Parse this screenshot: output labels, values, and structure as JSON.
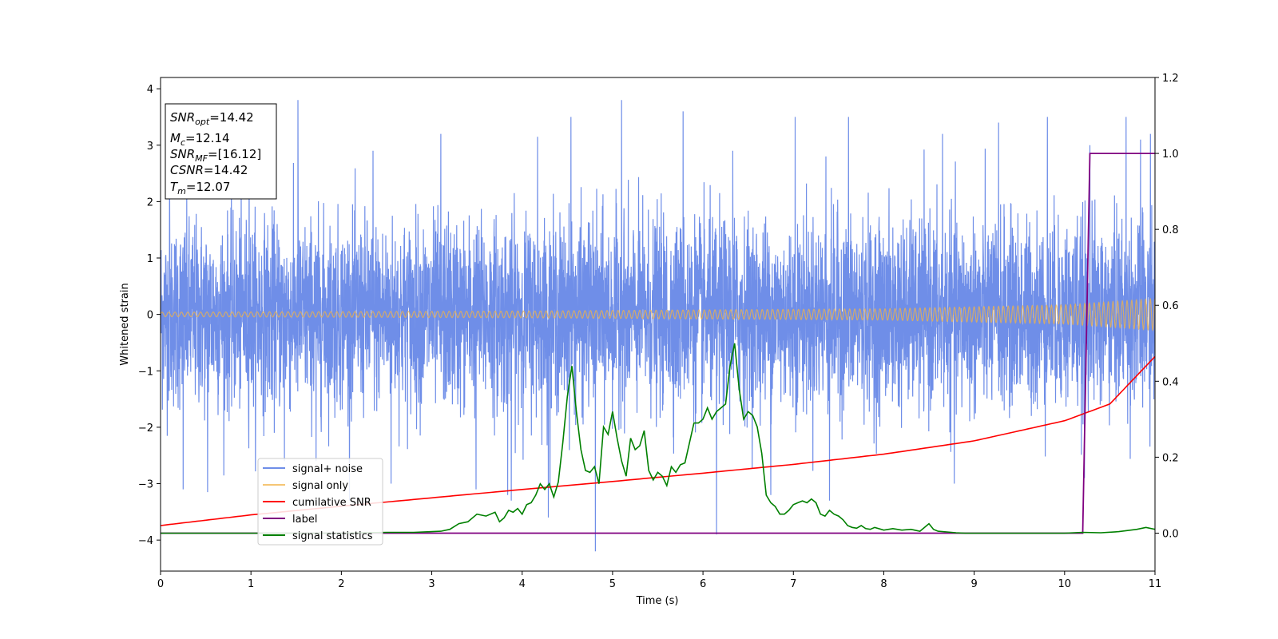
{
  "chart_data": {
    "type": "line",
    "title": "",
    "xlabel": "Time (s)",
    "ylabel_left": "Whitened strain",
    "ylabel_right": "",
    "xlim": [
      0,
      11
    ],
    "ylim_left": [
      -4.55,
      4.2
    ],
    "ylim_right": [
      -0.1,
      1.2
    ],
    "xticks": [
      "0",
      "1",
      "2",
      "3",
      "4",
      "5",
      "6",
      "7",
      "8",
      "9",
      "10",
      "11"
    ],
    "yticks_left": [
      "4",
      "3",
      "2",
      "1",
      "0",
      "−1",
      "−2",
      "−3",
      "−4"
    ],
    "yticks_right": [
      "1.2",
      "1.0",
      "0.8",
      "0.6",
      "0.4",
      "0.2",
      "0.0"
    ],
    "grid": false,
    "legend_position": "lower-left",
    "annotation": [
      {
        "base": "SNR",
        "sub": "opt",
        "rest": "=14.42"
      },
      {
        "base": "M",
        "sub": "c",
        "rest": "=12.14"
      },
      {
        "base": "SNR",
        "sub": "MF",
        "rest": "=[16.12]"
      },
      {
        "base": "CSNR",
        "sub": "",
        "rest": "=14.42"
      },
      {
        "base": "T",
        "sub": "m",
        "rest": "=12.07"
      }
    ],
    "series": [
      {
        "name": "signal+ noise",
        "color": "#6f8ee8",
        "axis": "left",
        "description_values": {
          "noise_sigma": 1.0,
          "spike_times": [
            0.1,
            0.25,
            0.52,
            0.98,
            1.37,
            1.52,
            1.72,
            2.35,
            2.55,
            3.1,
            3.49,
            3.84,
            3.88,
            4.17,
            4.29,
            4.54,
            4.81,
            5.1,
            5.78,
            6.15,
            6.33,
            6.75,
            7.02,
            7.36,
            7.4,
            7.61,
            8.65,
            8.78,
            9.27,
            9.81,
            10.22,
            10.28,
            10.68,
            10.84,
            10.95
          ],
          "spike_values": [
            2.8,
            -3.1,
            -3.15,
            3.1,
            -2.6,
            3.8,
            -2.6,
            2.9,
            -3.0,
            3.2,
            -3.1,
            -3.2,
            -3.3,
            3.15,
            -3.6,
            3.5,
            -4.2,
            3.8,
            3.6,
            -3.9,
            2.9,
            -3.2,
            3.5,
            2.8,
            -3.3,
            3.5,
            3.2,
            -3.0,
            3.4,
            3.5,
            -2.9,
            3.0,
            3.5,
            3.1,
            3.2
          ]
        }
      },
      {
        "name": "signal only",
        "color": "#f2b347",
        "axis": "left",
        "envelope": {
          "x": [
            0,
            4,
            8,
            10,
            11
          ],
          "amplitude": [
            0.04,
            0.06,
            0.1,
            0.17,
            0.28
          ]
        }
      },
      {
        "name": "cumilative SNR",
        "color": "#ff0000",
        "axis": "right",
        "x": [
          0,
          1,
          2,
          3,
          4,
          5,
          6,
          7,
          8,
          9,
          10,
          10.5,
          11
        ],
        "y": [
          0.02,
          0.048,
          0.071,
          0.093,
          0.115,
          0.136,
          0.158,
          0.181,
          0.208,
          0.243,
          0.296,
          0.34,
          0.465
        ]
      },
      {
        "name": "label",
        "color": "#800080",
        "axis": "right",
        "x": [
          0,
          10.2,
          10.28,
          11
        ],
        "y": [
          0.0,
          0.0,
          1.0,
          1.0
        ]
      },
      {
        "name": "signal statistics",
        "color": "#008000",
        "axis": "right",
        "x": [
          0,
          1,
          2,
          2.5,
          2.8,
          3.0,
          3.1,
          3.2,
          3.3,
          3.4,
          3.5,
          3.6,
          3.7,
          3.75,
          3.8,
          3.85,
          3.9,
          3.95,
          4.0,
          4.05,
          4.1,
          4.15,
          4.2,
          4.25,
          4.3,
          4.35,
          4.4,
          4.45,
          4.5,
          4.55,
          4.6,
          4.65,
          4.7,
          4.75,
          4.8,
          4.85,
          4.9,
          4.95,
          5.0,
          5.05,
          5.1,
          5.15,
          5.2,
          5.25,
          5.3,
          5.35,
          5.4,
          5.45,
          5.5,
          5.55,
          5.6,
          5.65,
          5.7,
          5.75,
          5.8,
          5.9,
          5.95,
          6.0,
          6.05,
          6.1,
          6.15,
          6.2,
          6.25,
          6.3,
          6.35,
          6.4,
          6.45,
          6.5,
          6.55,
          6.6,
          6.65,
          6.7,
          6.75,
          6.8,
          6.85,
          6.9,
          6.95,
          7.0,
          7.05,
          7.1,
          7.15,
          7.2,
          7.25,
          7.3,
          7.35,
          7.4,
          7.45,
          7.5,
          7.55,
          7.6,
          7.65,
          7.7,
          7.75,
          7.8,
          7.85,
          7.9,
          8.0,
          8.1,
          8.2,
          8.3,
          8.4,
          8.5,
          8.55,
          8.6,
          8.7,
          8.8,
          8.9,
          9.0,
          9.5,
          10.0,
          10.2,
          10.4,
          10.6,
          10.8,
          10.9,
          11
        ],
        "y": [
          0.0,
          0.0,
          0.0,
          0.002,
          0.002,
          0.004,
          0.005,
          0.01,
          0.025,
          0.03,
          0.05,
          0.045,
          0.055,
          0.03,
          0.04,
          0.06,
          0.055,
          0.065,
          0.05,
          0.075,
          0.08,
          0.1,
          0.13,
          0.115,
          0.13,
          0.095,
          0.135,
          0.24,
          0.36,
          0.44,
          0.32,
          0.22,
          0.165,
          0.16,
          0.175,
          0.13,
          0.28,
          0.26,
          0.32,
          0.25,
          0.19,
          0.15,
          0.25,
          0.22,
          0.23,
          0.27,
          0.165,
          0.14,
          0.16,
          0.15,
          0.125,
          0.175,
          0.16,
          0.18,
          0.185,
          0.29,
          0.29,
          0.3,
          0.33,
          0.3,
          0.32,
          0.33,
          0.34,
          0.44,
          0.5,
          0.38,
          0.3,
          0.32,
          0.31,
          0.28,
          0.21,
          0.1,
          0.08,
          0.07,
          0.05,
          0.05,
          0.06,
          0.075,
          0.08,
          0.085,
          0.08,
          0.09,
          0.08,
          0.05,
          0.045,
          0.06,
          0.05,
          0.045,
          0.035,
          0.02,
          0.015,
          0.013,
          0.02,
          0.012,
          0.01,
          0.015,
          0.008,
          0.012,
          0.008,
          0.01,
          0.005,
          0.025,
          0.01,
          0.005,
          0.003,
          0.001,
          0.0,
          0.0,
          0.0,
          0.0,
          0.002,
          0.001,
          0.004,
          0.01,
          0.015,
          0.01
        ]
      }
    ]
  }
}
